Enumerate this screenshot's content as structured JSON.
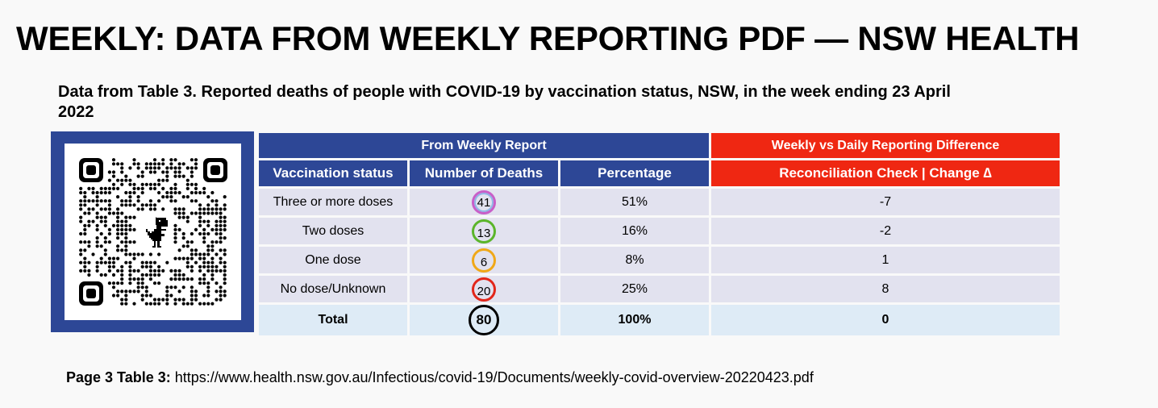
{
  "title": "WEEKLY: DATA FROM WEEKLY REPORTING PDF — NSW HEALTH",
  "subtitle": "Data from Table 3. Reported deaths of people with COVID-19 by vaccination status, NSW, in the week ending 23 April 2022",
  "qr": {
    "icon": "dinosaur-icon"
  },
  "table": {
    "group_left": "From Weekly Report",
    "group_right": "Weekly vs Daily Reporting Difference",
    "headers": [
      "Vaccination status",
      "Number of Deaths",
      "Percentage",
      "Reconciliation Check | Change ∆"
    ],
    "rows": [
      {
        "status": "Three or more doses",
        "deaths": "41",
        "percentage": "51%",
        "change": "-7",
        "ring_color": "#c85fc8"
      },
      {
        "status": "Two doses",
        "deaths": "13",
        "percentage": "16%",
        "change": "-2",
        "ring_color": "#5bb52a"
      },
      {
        "status": "One dose",
        "deaths": "6",
        "percentage": "8%",
        "change": "1",
        "ring_color": "#f0a818"
      },
      {
        "status": "No dose/Unknown",
        "deaths": "20",
        "percentage": "25%",
        "change": "8",
        "ring_color": "#e2261a"
      }
    ],
    "total": {
      "status": "Total",
      "deaths": "80",
      "percentage": "100%",
      "change": "0"
    }
  },
  "footer": {
    "label": "Page 3 Table 3:",
    "url": "https://www.health.nsw.gov.au/Infectious/covid-19/Documents/weekly-covid-overview-20220423.pdf"
  }
}
